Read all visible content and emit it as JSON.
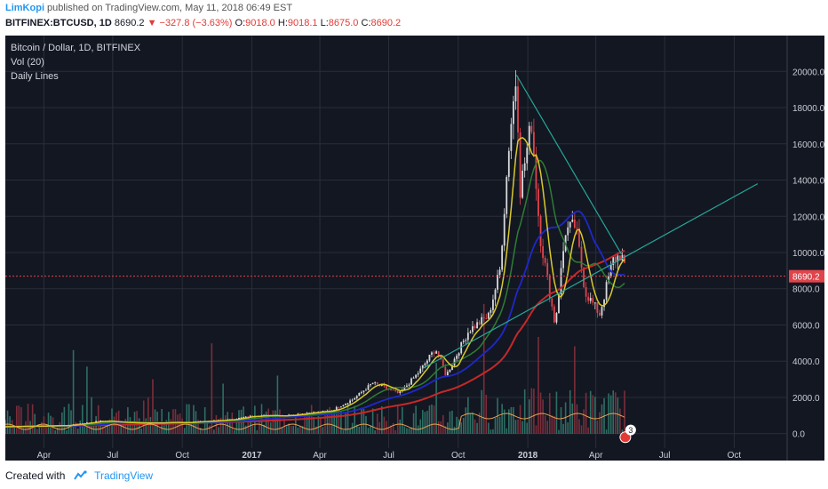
{
  "header": {
    "author": "LimKopi",
    "published": " published on TradingView.com, May 11, 2018 06:49 EST",
    "symbol": "BITFINEX:BTCUSD, 1D",
    "last": "8690.2",
    "change": "−327.8 (−3.63%)",
    "o_label": "O:",
    "o_val": "9018.0",
    "h_label": "H:",
    "h_val": "9018.1",
    "l_label": "L:",
    "l_val": "8675.0",
    "c_label": "C:",
    "c_val": "8690.2"
  },
  "legend": {
    "line1": "Bitcoin / Dollar, 1D, BITFINEX",
    "line2": "Vol (20)",
    "line3": "Daily Lines"
  },
  "footer": {
    "created": "Created with",
    "brand": "TradingView"
  },
  "colors": {
    "bg": "#131722",
    "grid": "#2a2e39",
    "candle_up": "#d7d9dc",
    "candle_down": "#e0444b",
    "ma_yellow": "#d8c92a",
    "ma_green": "#2e7d32",
    "ma_blue": "#1f28c9",
    "ma_red": "#c62828",
    "trend": "#26a69a",
    "vol_up": "#2e6e64",
    "vol_down": "#7a2e3a",
    "vol_ma": "#e8a050",
    "price_line": "#e0444b"
  },
  "chart_data": {
    "type": "candlestick",
    "title": "Bitcoin / Dollar, 1D, BITFINEX",
    "x_ticks": [
      "Apr",
      "Jul",
      "Oct",
      "2017",
      "Apr",
      "Jul",
      "Oct",
      "2018",
      "Apr",
      "Jul",
      "Oct"
    ],
    "y_ticks": [
      "20000.0",
      "18000.0",
      "16000.0",
      "14000.0",
      "12000.0",
      "10000.0",
      "8000.0",
      "6000.0",
      "4000.0",
      "2000.0",
      "0.0"
    ],
    "ylim": [
      -800,
      20800
    ],
    "last_price_label": "8690.2",
    "last_price": 8690.2,
    "badge": "3",
    "price_path": [
      {
        "x": "2016-02-01",
        "y": 380
      },
      {
        "x": "2016-05-01",
        "y": 450
      },
      {
        "x": "2016-06-15",
        "y": 700
      },
      {
        "x": "2016-08-01",
        "y": 580
      },
      {
        "x": "2016-10-01",
        "y": 610
      },
      {
        "x": "2016-12-01",
        "y": 760
      },
      {
        "x": "2017-01-05",
        "y": 1000
      },
      {
        "x": "2017-02-15",
        "y": 1000
      },
      {
        "x": "2017-03-15",
        "y": 1150
      },
      {
        "x": "2017-04-15",
        "y": 1250
      },
      {
        "x": "2017-05-15",
        "y": 1900
      },
      {
        "x": "2017-06-10",
        "y": 2800
      },
      {
        "x": "2017-07-15",
        "y": 2200
      },
      {
        "x": "2017-08-10",
        "y": 3400
      },
      {
        "x": "2017-09-01",
        "y": 4700
      },
      {
        "x": "2017-09-15",
        "y": 3200
      },
      {
        "x": "2017-10-15",
        "y": 5700
      },
      {
        "x": "2017-11-10",
        "y": 6500
      },
      {
        "x": "2017-11-25",
        "y": 9000
      },
      {
        "x": "2017-12-08",
        "y": 16500
      },
      {
        "x": "2017-12-17",
        "y": 19800
      },
      {
        "x": "2017-12-22",
        "y": 13500
      },
      {
        "x": "2018-01-06",
        "y": 17200
      },
      {
        "x": "2018-01-17",
        "y": 11000
      },
      {
        "x": "2018-02-06",
        "y": 6000
      },
      {
        "x": "2018-02-20",
        "y": 11200
      },
      {
        "x": "2018-03-05",
        "y": 11500
      },
      {
        "x": "2018-03-18",
        "y": 7800
      },
      {
        "x": "2018-04-06",
        "y": 6600
      },
      {
        "x": "2018-04-24",
        "y": 9600
      },
      {
        "x": "2018-05-05",
        "y": 9900
      },
      {
        "x": "2018-05-11",
        "y": 8690
      }
    ],
    "trendlines": [
      {
        "from": {
          "x": "2017-12-17",
          "y": 19800
        },
        "to": {
          "x": "2018-05-05",
          "y": 9900
        }
      },
      {
        "from": {
          "x": "2017-08-15",
          "y": 3600
        },
        "to": {
          "x": "2018-11-01",
          "y": 13800
        }
      }
    ]
  }
}
